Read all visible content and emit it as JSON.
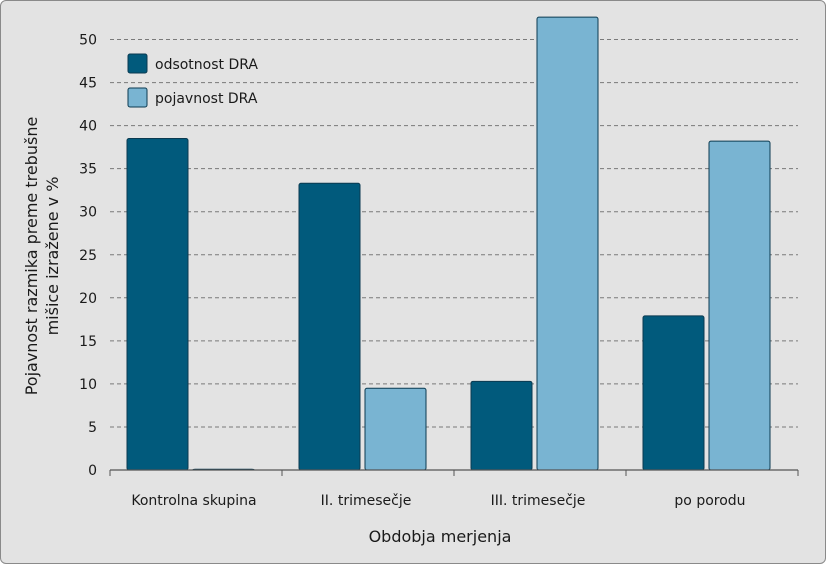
{
  "chart_data": {
    "type": "bar",
    "categories": [
      "Kontrolna skupina",
      "II. trimesečje",
      "III. trimesečje",
      "po porodu"
    ],
    "series": [
      {
        "name": "odsotnost DRA",
        "values": [
          38.5,
          33.3,
          10.3,
          17.9
        ],
        "color": "#015a7c"
      },
      {
        "name": "pojavnost DRA",
        "values": [
          0,
          9.5,
          52.6,
          38.2
        ],
        "color": "#79b4d2"
      }
    ],
    "xlabel": "Obdobja merjenja",
    "ylabel_lines": [
      "Pojavnost razmika preme trebušne",
      "mišice izražene v %"
    ],
    "ylim": [
      0,
      52.5
    ],
    "yticks": [
      0,
      5,
      10,
      15,
      20,
      25,
      30,
      35,
      40,
      45,
      50
    ],
    "grid": "horizontal dashed",
    "legend_position": "top-left"
  }
}
